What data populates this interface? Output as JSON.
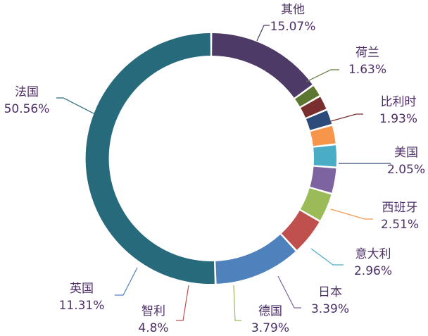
{
  "chart_data": {
    "type": "pie",
    "variant": "donut",
    "title": "",
    "legend": "none",
    "label_color": "#4c2f67",
    "slices": [
      {
        "label": "其他",
        "value": 15.07,
        "value_text": "15.07%",
        "color": "#4e3a67"
      },
      {
        "label": "荷兰",
        "value": 1.63,
        "value_text": "1.63%",
        "color": "#5e7730"
      },
      {
        "label": "比利时",
        "value": 1.93,
        "value_text": "1.93%",
        "color": "#7a2e2e"
      },
      {
        "label": "美国",
        "value": 2.05,
        "value_text": "2.05%",
        "color": "#2d4b7a"
      },
      {
        "label": "西班牙",
        "value": 2.51,
        "value_text": "2.51%",
        "color": "#f7954a"
      },
      {
        "label": "意大利",
        "value": 2.96,
        "value_text": "2.96%",
        "color": "#4bacc6"
      },
      {
        "label": "日本",
        "value": 3.39,
        "value_text": "3.39%",
        "color": "#7e63a1"
      },
      {
        "label": "德国",
        "value": 3.79,
        "value_text": "3.79%",
        "color": "#9bbb59"
      },
      {
        "label": "智利",
        "value": 4.8,
        "value_text": "4.8%",
        "color": "#c0504d"
      },
      {
        "label": "英国",
        "value": 11.31,
        "value_text": "11.31%",
        "color": "#4f81bd"
      },
      {
        "label": "法国",
        "value": 50.56,
        "value_text": "50.56%",
        "color": "#276a7c"
      }
    ]
  }
}
